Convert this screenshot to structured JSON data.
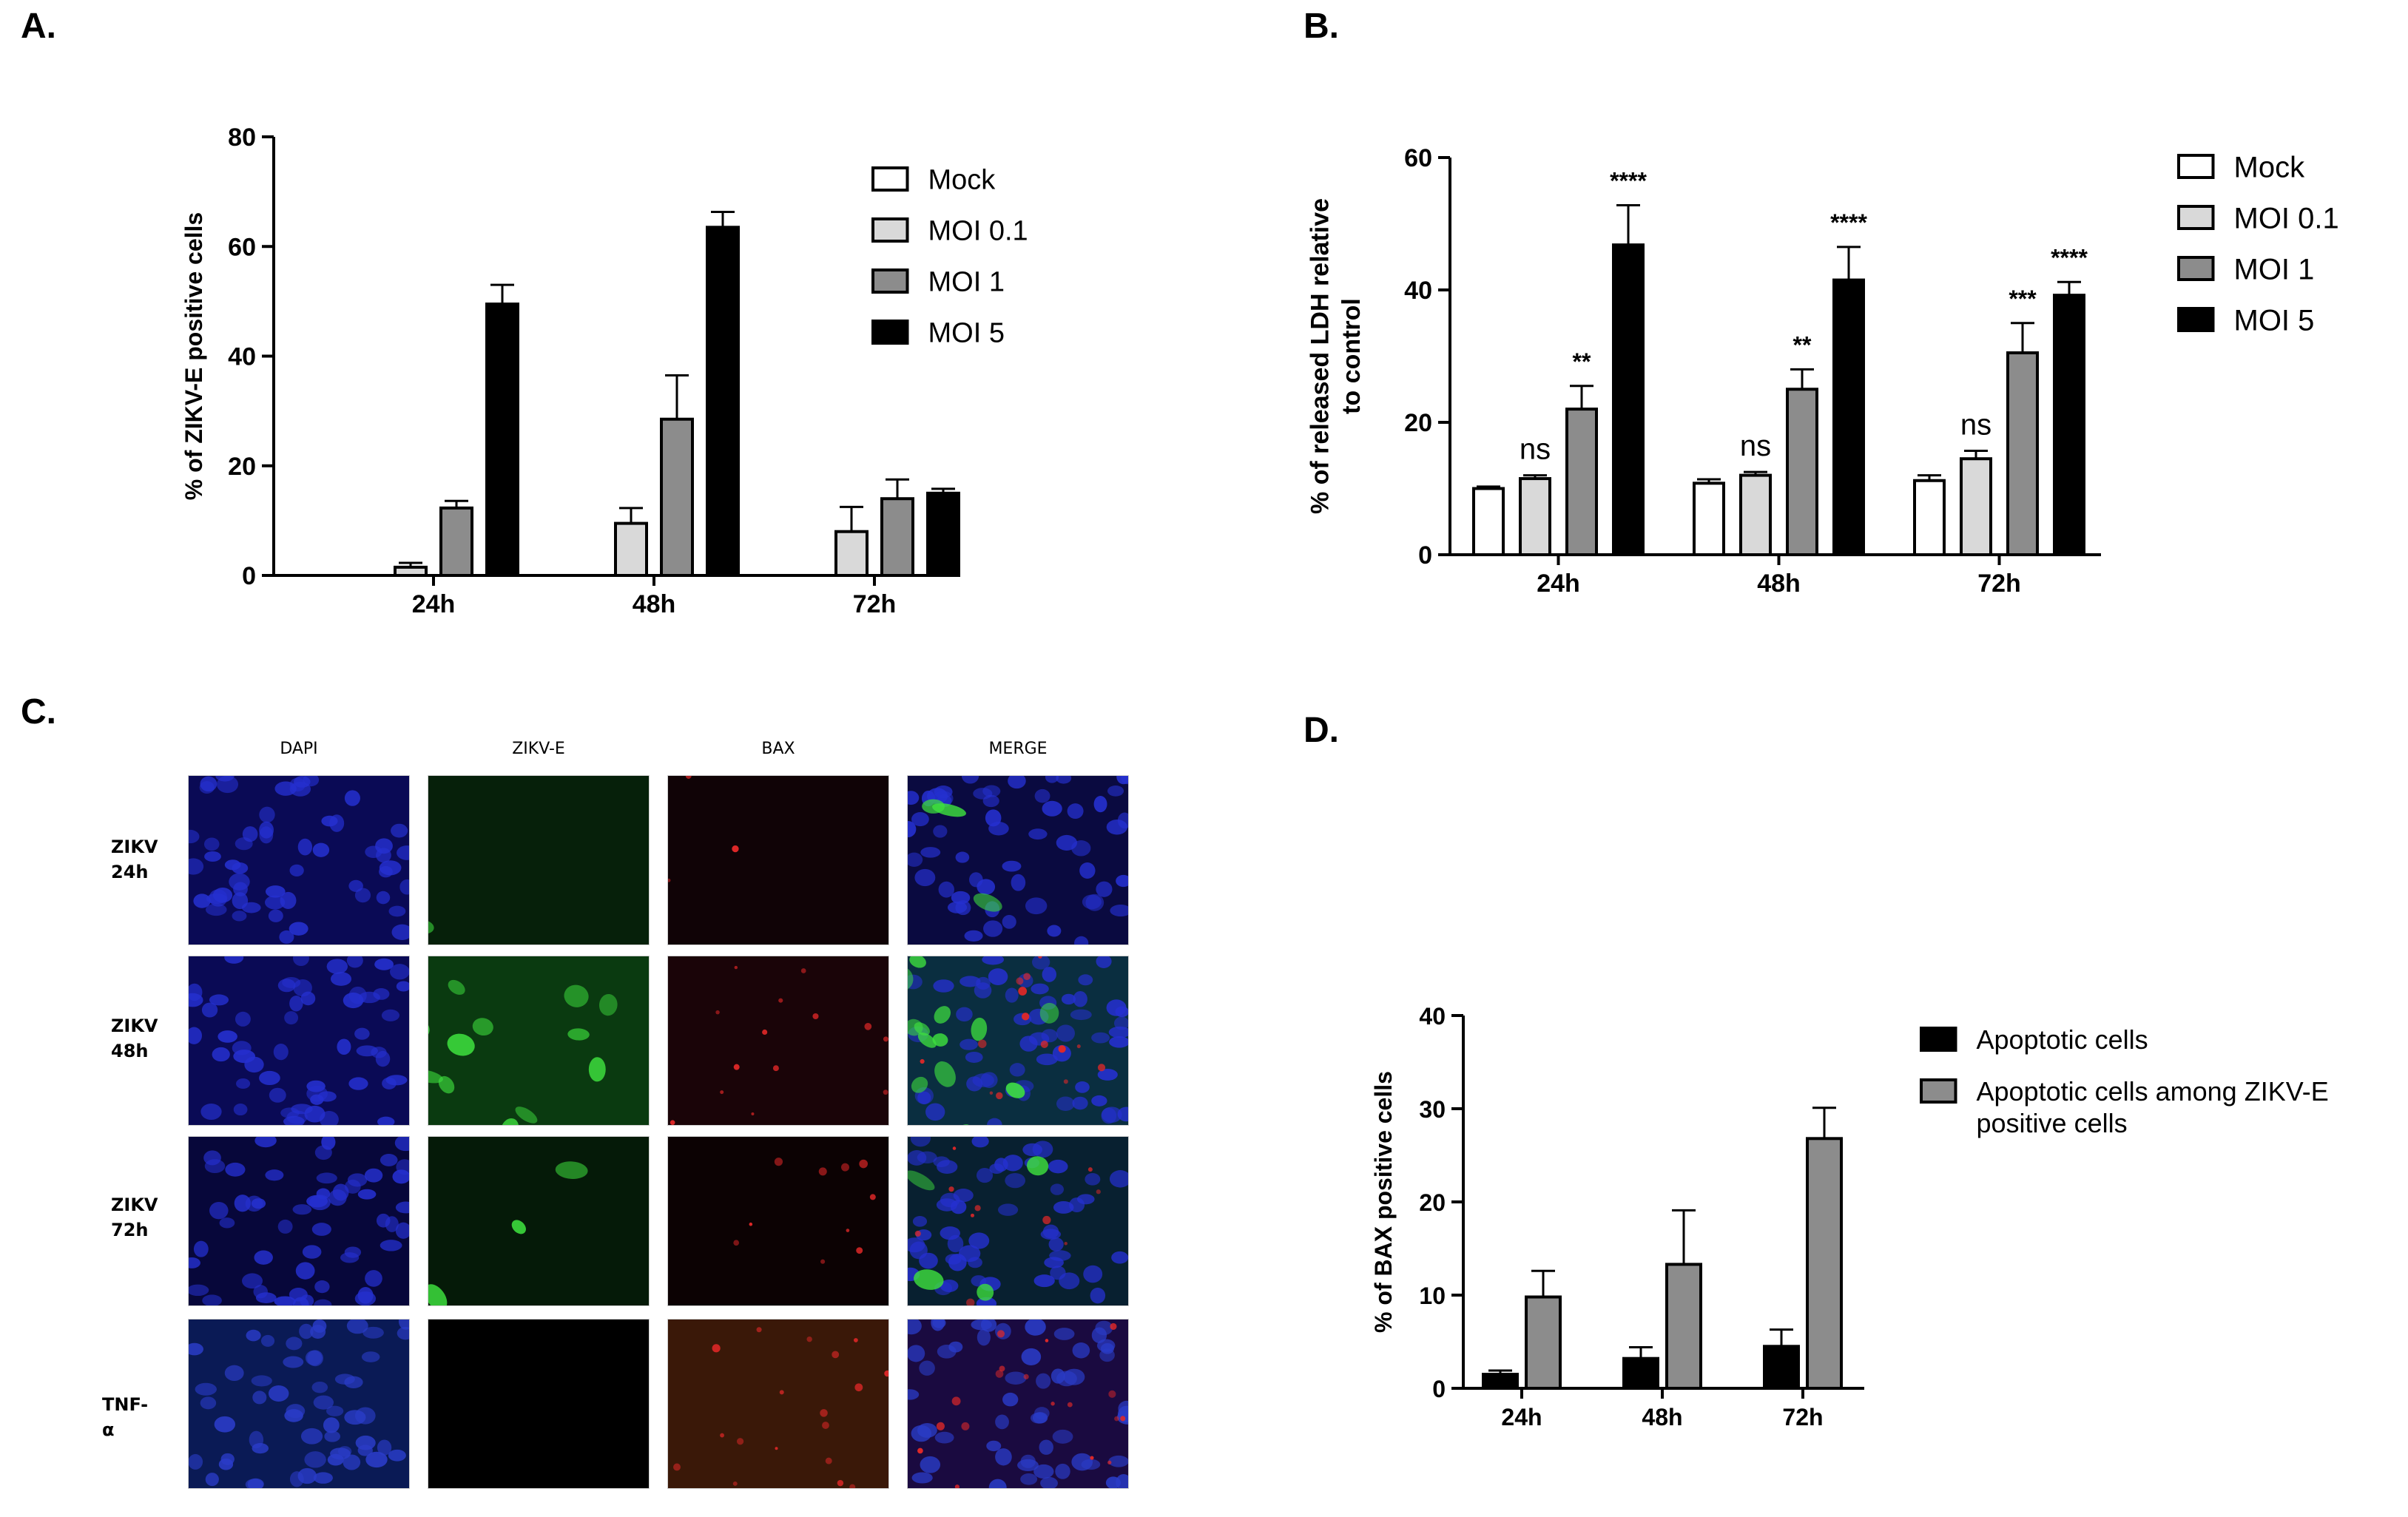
{
  "panels": {
    "A": {
      "letter": "A."
    },
    "B": {
      "letter": "B."
    },
    "C": {
      "letter": "C."
    },
    "D": {
      "letter": "D."
    }
  },
  "chart_data": [
    {
      "id": "A",
      "type": "bar",
      "title": "",
      "xlabel": "",
      "ylabel": "% of ZIKV-E positive cells",
      "ylim": [
        0,
        80
      ],
      "yticks": [
        0,
        20,
        40,
        60,
        80
      ],
      "categories": [
        "24h",
        "48h",
        "72h"
      ],
      "legend_position": "top-right",
      "series": [
        {
          "name": "Mock",
          "values": [
            0,
            0,
            0
          ],
          "errors": [
            0,
            0,
            0
          ],
          "color": "#ffffff"
        },
        {
          "name": "MOI 0.1",
          "values": [
            1.5,
            9.5,
            8
          ],
          "errors": [
            0.8,
            2.8,
            4.5
          ],
          "color": "#d9d9d9"
        },
        {
          "name": "MOI 1",
          "values": [
            12.3,
            28.5,
            14
          ],
          "errors": [
            1.3,
            8,
            3.5
          ],
          "color": "#8c8c8c"
        },
        {
          "name": "MOI 5",
          "values": [
            49.5,
            63.5,
            15
          ],
          "errors": [
            3.5,
            2.8,
            0.8
          ],
          "color": "#000000"
        }
      ]
    },
    {
      "id": "B",
      "type": "bar",
      "title": "",
      "xlabel": "",
      "ylabel": [
        "% of released LDH relative",
        "to control"
      ],
      "ylim": [
        0,
        60
      ],
      "yticks": [
        0,
        20,
        40,
        60
      ],
      "categories": [
        "24h",
        "48h",
        "72h"
      ],
      "legend_position": "top-right",
      "series": [
        {
          "name": "Mock",
          "values": [
            10,
            10.8,
            11.2
          ],
          "errors": [
            0.3,
            0.6,
            0.8
          ],
          "color": "#ffffff",
          "annotations": [
            "",
            "",
            ""
          ]
        },
        {
          "name": "MOI 0.1",
          "values": [
            11.5,
            12,
            14.5
          ],
          "errors": [
            0.5,
            0.5,
            1.2
          ],
          "color": "#d9d9d9",
          "annotations": [
            "ns",
            "ns",
            "ns"
          ]
        },
        {
          "name": "MOI 1",
          "values": [
            22,
            25,
            30.5
          ],
          "errors": [
            3.5,
            3,
            4.5
          ],
          "color": "#8c8c8c",
          "annotations": [
            "**",
            "**",
            "***"
          ]
        },
        {
          "name": "MOI 5",
          "values": [
            46.8,
            41.5,
            39.2
          ],
          "errors": [
            6,
            5,
            2
          ],
          "color": "#000000",
          "annotations": [
            "****",
            "****",
            "****"
          ]
        }
      ]
    },
    {
      "id": "D",
      "type": "bar",
      "title": "",
      "xlabel": "",
      "ylabel": "% of BAX positive cells",
      "ylim": [
        0,
        40
      ],
      "yticks": [
        0,
        10,
        20,
        30,
        40
      ],
      "categories": [
        "24h",
        "48h",
        "72h"
      ],
      "legend_position": "top-right",
      "series": [
        {
          "name": "Apoptotic cells",
          "values": [
            1.5,
            3.2,
            4.5
          ],
          "errors": [
            0.4,
            1.2,
            1.8
          ],
          "color": "#000000"
        },
        {
          "name": [
            "Apoptotic cells among ZIKV-E",
            "positive cells"
          ],
          "values": [
            9.8,
            13.3,
            26.8
          ],
          "errors": [
            2.8,
            5.8,
            3.3
          ],
          "color": "#8c8c8c"
        }
      ]
    }
  ],
  "micrographs": {
    "column_headers": [
      "DAPI",
      "ZIKV-E",
      "BAX",
      "MERGE"
    ],
    "row_labels": [
      [
        "ZIKV",
        "24h"
      ],
      [
        "ZIKV",
        "48h"
      ],
      [
        "ZIKV",
        "72h"
      ],
      [
        "TNF-α"
      ]
    ]
  }
}
